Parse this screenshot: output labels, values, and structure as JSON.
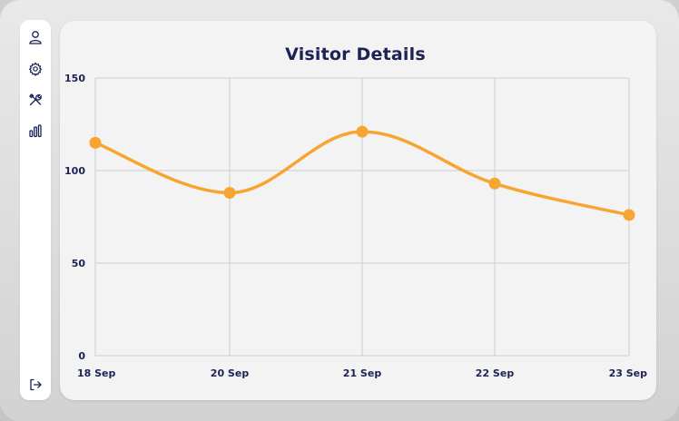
{
  "sidebar": {
    "items": [
      {
        "icon": "user-icon",
        "label": ""
      },
      {
        "icon": "gear-icon",
        "label": ""
      },
      {
        "icon": "tools-icon",
        "label": ""
      },
      {
        "icon": "bar-chart-icon",
        "label": ""
      }
    ],
    "bottom": {
      "icon": "logout-icon"
    }
  },
  "colors": {
    "accent": "#f7a531",
    "title": "#1b2255",
    "grid": "#d4d4d4"
  },
  "chart_data": {
    "type": "line",
    "title": "Visitor Details",
    "xlabel": "",
    "ylabel": "",
    "categories": [
      "18 Sep",
      "20 Sep",
      "21 Sep",
      "22 Sep",
      "23 Sep"
    ],
    "series": [
      {
        "values": [
          115,
          88,
          121,
          93,
          76
        ]
      }
    ],
    "ylim": [
      0,
      150
    ],
    "yticks": [
      0,
      50,
      100,
      150
    ],
    "grid": true,
    "smooth": true
  }
}
